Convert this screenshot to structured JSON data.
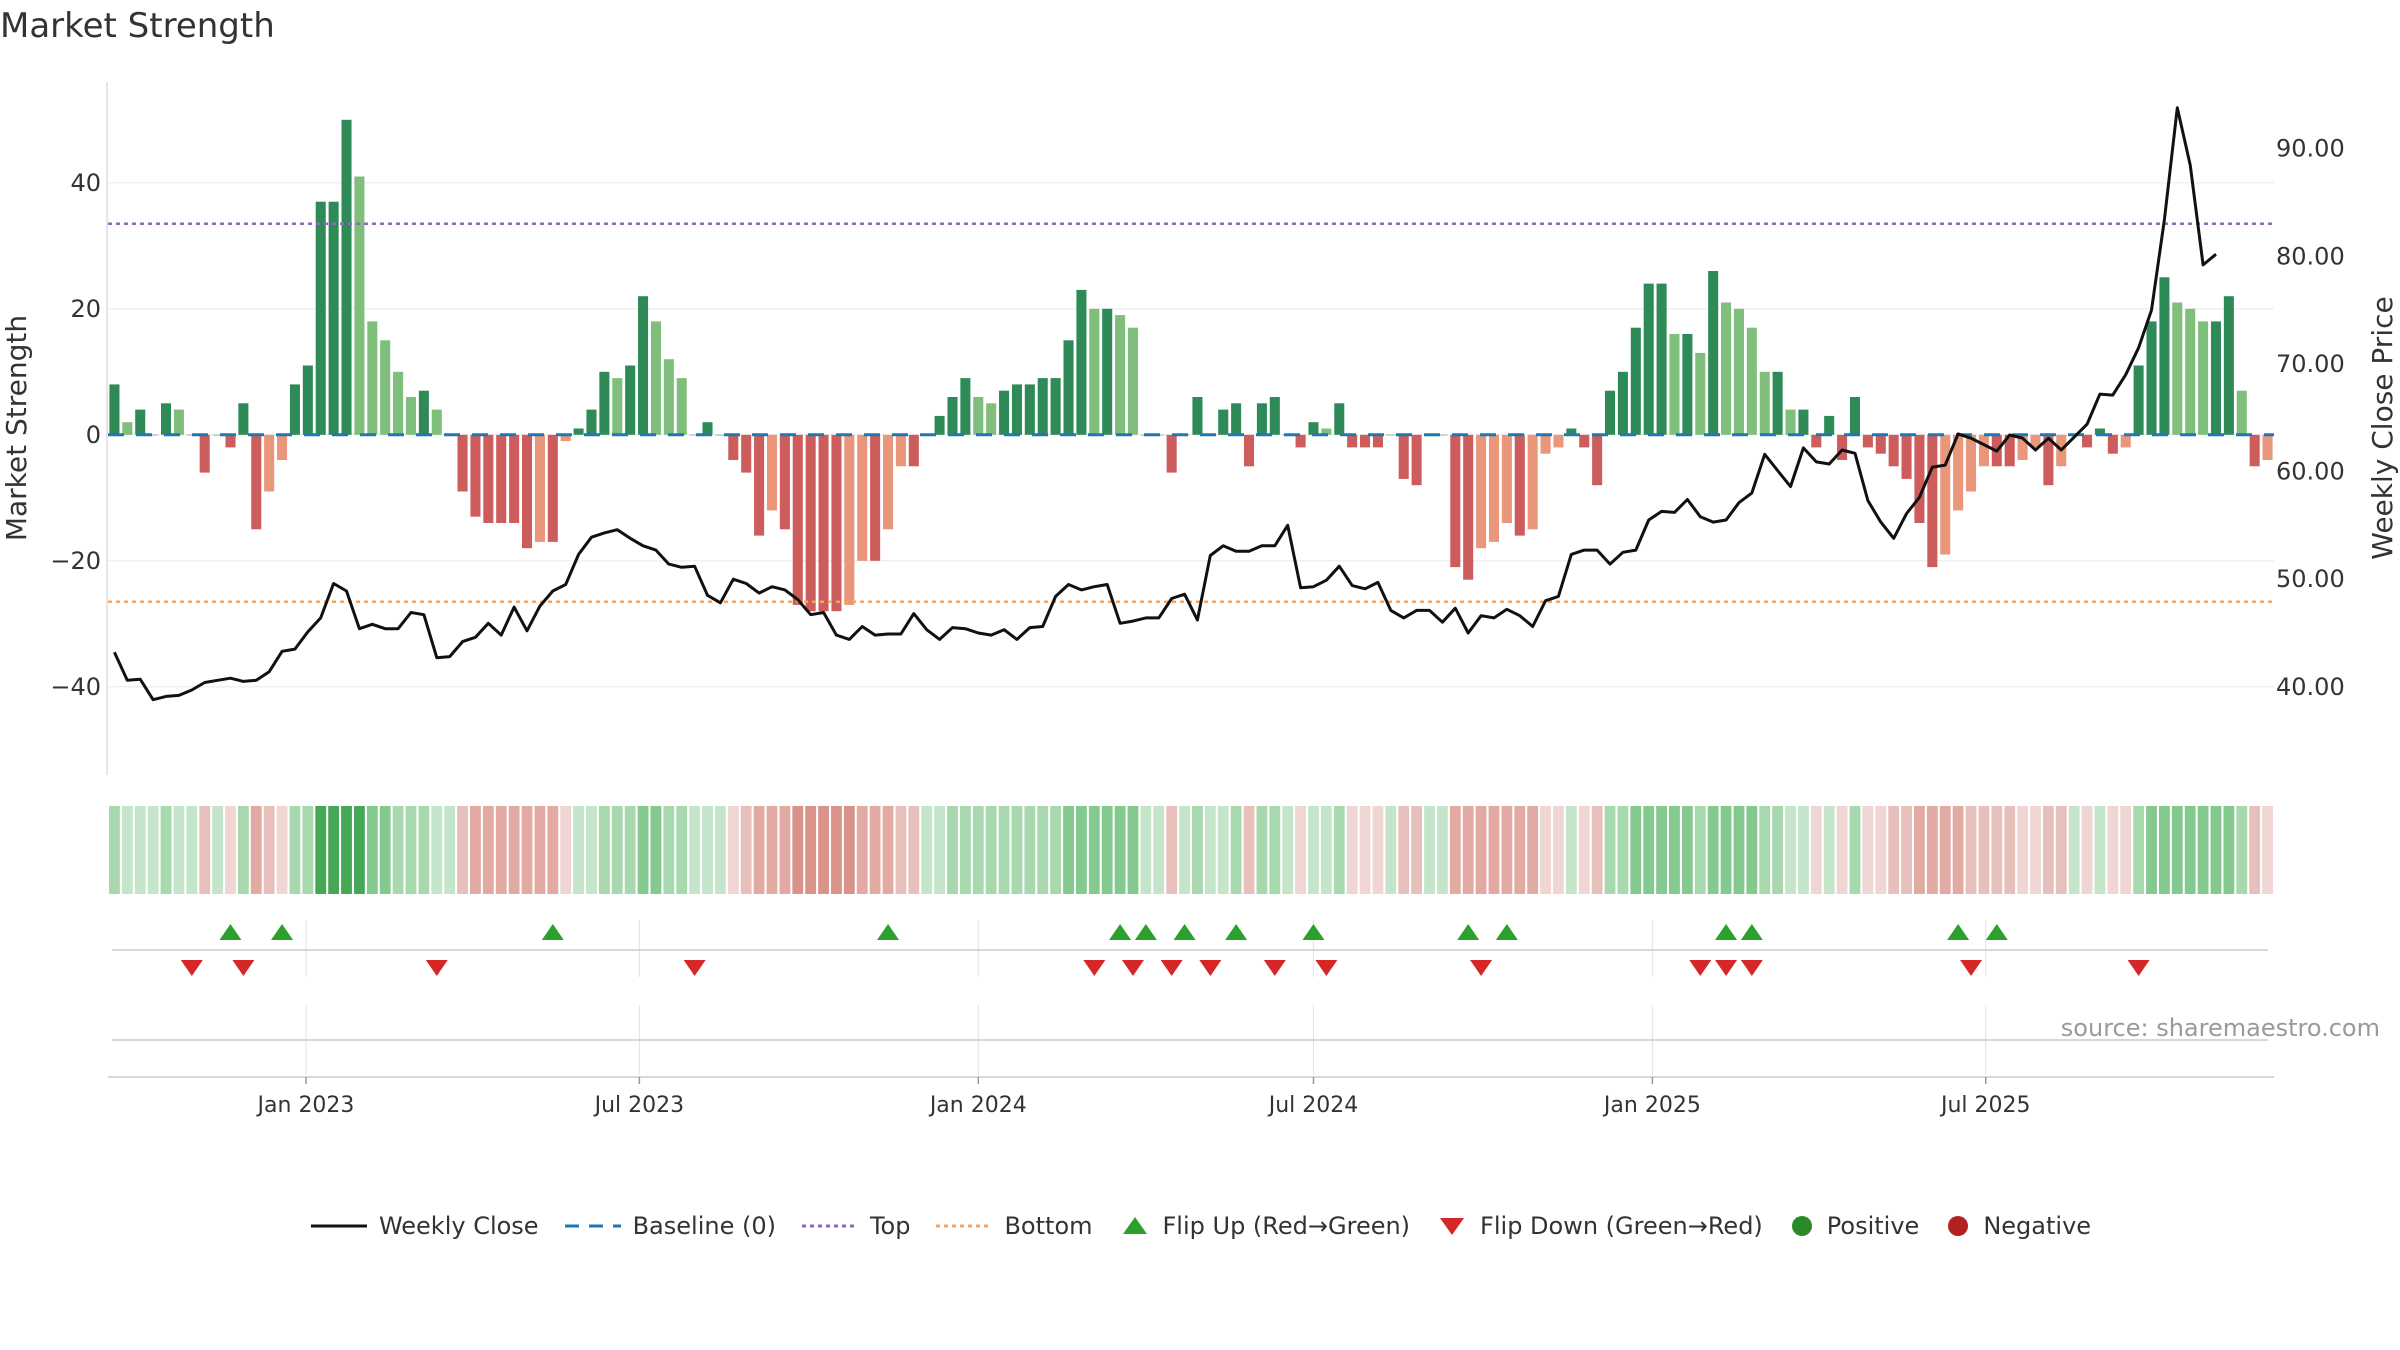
{
  "title": "Market Strength",
  "source": "source: sharemaestro.com",
  "colors": {
    "strong_green": "#2e8b57",
    "light_green": "#7fbf7b",
    "strong_red": "#cd5c5c",
    "light_red": "#e9967a",
    "price_line": "#111111",
    "baseline": "#1f77b4",
    "top": "#9467bd",
    "bottom": "#f4a460",
    "flip_up": "#2ca02c",
    "flip_down": "#d62728",
    "positive": "#2a8a2a",
    "negative": "#b22222"
  },
  "chart_data": {
    "type": "bar",
    "title": "Market Strength",
    "ylabel": "Market Strength",
    "y2label": "Weekly Close Price",
    "ylim": [
      -54,
      56
    ],
    "y2lim": [
      31.8,
      96.2
    ],
    "yticks": [
      40,
      20,
      0,
      -20,
      -40
    ],
    "y2ticks": [
      "90.00",
      "80.00",
      "70.00",
      "60.00",
      "50.00",
      "40.00"
    ],
    "xticks": [
      "Jan 2023",
      "Jul 2023",
      "Jan 2024",
      "Jul 2024",
      "Jan 2025",
      "Jul 2025"
    ],
    "x_start": "2022-09-19",
    "x_interval": "weekly",
    "top_threshold": 33.5,
    "bottom_threshold": -26.5,
    "strength": [
      8,
      2,
      4,
      0,
      5,
      4,
      0,
      -6,
      0,
      -2,
      5,
      -15,
      -9,
      -4,
      8,
      11,
      37,
      37,
      50,
      41,
      18,
      15,
      10,
      6,
      7,
      4,
      0,
      -9,
      -13,
      -14,
      -14,
      -14,
      -18,
      -17,
      -17,
      -1,
      1,
      4,
      10,
      9,
      11,
      22,
      18,
      12,
      9,
      0,
      2,
      0,
      -4,
      -6,
      -16,
      -12,
      -15,
      -27,
      -28,
      -28,
      -28,
      -27,
      -20,
      -20,
      -15,
      -5,
      -5,
      0,
      3,
      6,
      9,
      6,
      5,
      7,
      8,
      8,
      9,
      9,
      15,
      23,
      20,
      20,
      19,
      17,
      0,
      0,
      -6,
      0,
      6,
      0,
      4,
      5,
      -5,
      5,
      6,
      0,
      -2,
      2,
      1,
      5,
      -2,
      -2,
      -2,
      0,
      -7,
      -8,
      0,
      0,
      -21,
      -23,
      -18,
      -17,
      -14,
      -16,
      -15,
      -3,
      -2,
      1,
      -2,
      -8,
      7,
      10,
      17,
      24,
      24,
      16,
      16,
      13,
      26,
      21,
      20,
      17,
      10,
      10,
      4,
      4,
      -2,
      3,
      -4,
      6,
      -2,
      -3,
      -5,
      -7,
      -14,
      -21,
      -19,
      -12,
      -9,
      -5,
      -5,
      -5,
      -4,
      -2,
      -8,
      -5,
      0,
      -2,
      1,
      -3,
      -2,
      11,
      18,
      25,
      21,
      20,
      18,
      18,
      22,
      7,
      -5,
      -4
    ],
    "price": [
      43.2,
      40.6,
      40.7,
      38.8,
      39.1,
      39.2,
      39.7,
      40.4,
      40.6,
      40.8,
      40.5,
      40.6,
      41.4,
      43.3,
      43.5,
      45.1,
      46.4,
      49.6,
      48.9,
      45.4,
      45.8,
      45.4,
      45.4,
      46.9,
      46.7,
      42.7,
      42.8,
      44.2,
      44.6,
      45.9,
      44.8,
      47.4,
      45.2,
      47.5,
      48.9,
      49.5,
      52.3,
      53.9,
      54.3,
      54.6,
      53.8,
      53.1,
      52.7,
      51.4,
      51.1,
      51.2,
      48.5,
      47.8,
      50.0,
      49.6,
      48.7,
      49.3,
      49.0,
      48.1,
      46.7,
      46.9,
      44.8,
      44.4,
      45.6,
      44.8,
      44.9,
      44.9,
      46.8,
      45.3,
      44.4,
      45.5,
      45.4,
      45.0,
      44.8,
      45.3,
      44.4,
      45.5,
      45.6,
      48.4,
      49.5,
      49.0,
      49.3,
      49.5,
      45.9,
      46.1,
      46.4,
      46.4,
      48.2,
      48.6,
      46.2,
      52.2,
      53.1,
      52.6,
      52.6,
      53.1,
      53.1,
      55.0,
      49.2,
      49.3,
      49.9,
      51.2,
      49.4,
      49.1,
      49.7,
      47.1,
      46.4,
      47.1,
      47.1,
      46.0,
      47.3,
      45.0,
      46.6,
      46.4,
      47.2,
      46.6,
      45.6,
      48.0,
      48.4,
      52.3,
      52.7,
      52.7,
      51.4,
      52.5,
      52.7,
      55.5,
      56.3,
      56.2,
      57.4,
      55.8,
      55.3,
      55.5,
      57.1,
      58.0,
      61.6,
      60.1,
      58.6,
      62.2,
      60.9,
      60.7,
      62.0,
      61.7,
      57.3,
      55.3,
      53.8,
      56.1,
      57.6,
      60.4,
      60.6,
      63.5,
      63.1,
      62.5,
      61.9,
      63.4,
      63.1,
      62.0,
      63.1,
      62.0,
      63.2,
      64.4,
      67.2,
      67.1,
      69.0,
      71.5,
      75.0,
      83.4,
      93.8,
      88.5,
      79.2,
      80.2
    ],
    "flip_up_weeks": [
      9,
      13,
      34,
      60,
      78,
      80,
      83,
      87,
      93,
      105,
      108,
      125,
      127,
      143,
      146
    ],
    "flip_down_weeks": [
      6,
      10,
      25,
      45,
      76,
      79,
      82,
      85,
      90,
      94,
      106,
      123,
      125,
      127,
      144,
      157
    ],
    "series": [
      {
        "name": "Weekly Close"
      },
      {
        "name": "Baseline (0)"
      },
      {
        "name": "Top"
      },
      {
        "name": "Bottom"
      },
      {
        "name": "Flip Up (Red→Green)"
      },
      {
        "name": "Flip Down (Green→Red)"
      },
      {
        "name": "Positive"
      },
      {
        "name": "Negative"
      }
    ]
  }
}
